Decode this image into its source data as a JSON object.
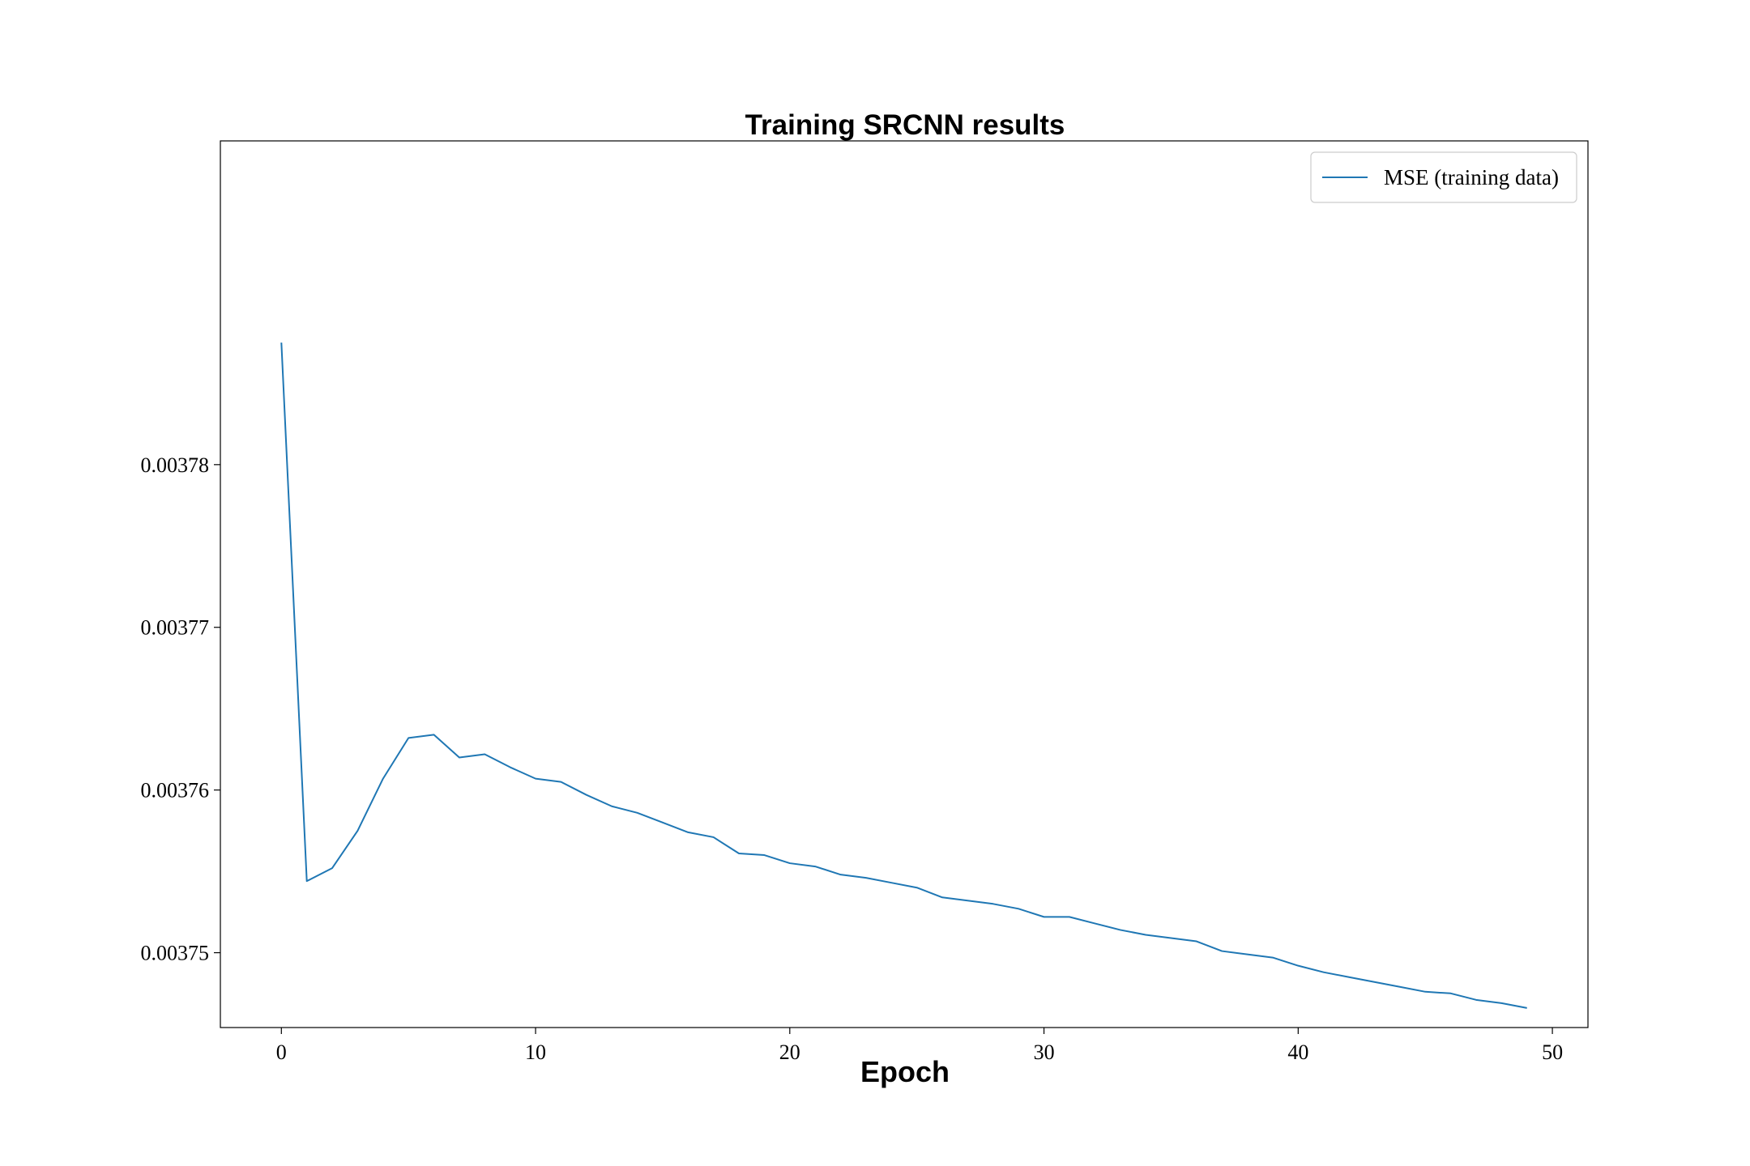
{
  "chart_data": {
    "type": "line",
    "title": "Training SRCNN results",
    "xlabel": "Epoch",
    "ylabel": "",
    "xlim": [
      -2.4,
      51.4
    ],
    "ylim": [
      0.0037454,
      0.0037999
    ],
    "xticks": [
      0,
      10,
      20,
      30,
      40,
      50
    ],
    "xtick_labels": [
      "0",
      "10",
      "20",
      "30",
      "40",
      "50"
    ],
    "yticks": [
      0.00375,
      0.00376,
      0.00377,
      0.00378
    ],
    "ytick_labels": [
      "0.00375",
      "0.00376",
      "0.00377",
      "0.00378"
    ],
    "grid": false,
    "legend_position": "top-right",
    "series": [
      {
        "name": "MSE (training data)",
        "color": "#1f77b4",
        "x": [
          0,
          1,
          2,
          3,
          4,
          5,
          6,
          7,
          8,
          9,
          10,
          11,
          12,
          13,
          14,
          15,
          16,
          17,
          18,
          19,
          20,
          21,
          22,
          23,
          24,
          25,
          26,
          27,
          28,
          29,
          30,
          31,
          32,
          33,
          34,
          35,
          36,
          37,
          38,
          39,
          40,
          41,
          42,
          43,
          44,
          45,
          46,
          47,
          48,
          49
        ],
        "y": [
          0.0037875,
          0.0037544,
          0.0037552,
          0.0037575,
          0.0037607,
          0.0037632,
          0.0037634,
          0.003762,
          0.0037622,
          0.0037614,
          0.0037607,
          0.0037605,
          0.0037597,
          0.003759,
          0.0037586,
          0.003758,
          0.0037574,
          0.0037571,
          0.0037561,
          0.003756,
          0.0037555,
          0.0037553,
          0.0037548,
          0.0037546,
          0.0037543,
          0.003754,
          0.0037534,
          0.0037532,
          0.003753,
          0.0037527,
          0.0037522,
          0.0037522,
          0.0037518,
          0.0037514,
          0.0037511,
          0.0037509,
          0.0037507,
          0.0037501,
          0.0037499,
          0.0037497,
          0.0037492,
          0.0037488,
          0.0037485,
          0.0037482,
          0.0037479,
          0.0037476,
          0.0037475,
          0.0037471,
          0.0037469,
          0.0037466
        ]
      }
    ]
  }
}
